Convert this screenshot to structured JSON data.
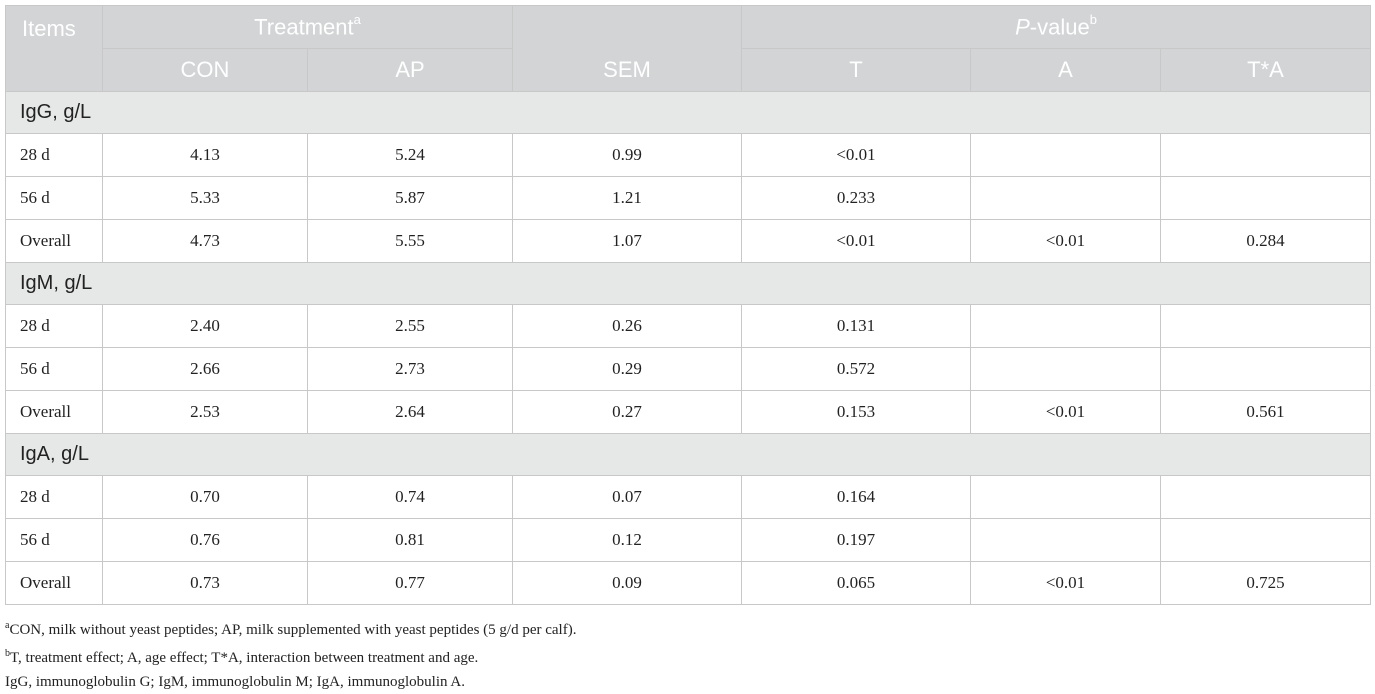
{
  "header": {
    "items": "Items",
    "treatment": "Treatment",
    "treatment_sup": "a",
    "pvalue_italic": "P",
    "pvalue_rest": "-value",
    "pvalue_sup": "b",
    "con": "CON",
    "ap": "AP",
    "sem": "SEM",
    "t": "T",
    "a": "A",
    "ta": "T*A"
  },
  "groups": [
    {
      "title": "IgG, g/L",
      "rows": [
        {
          "label": "28 d",
          "con": "4.13",
          "ap": "5.24",
          "sem": "0.99",
          "t": "<0.01",
          "a": "",
          "ta": ""
        },
        {
          "label": "56 d",
          "con": "5.33",
          "ap": "5.87",
          "sem": "1.21",
          "t": "0.233",
          "a": "",
          "ta": ""
        },
        {
          "label": "Overall",
          "con": "4.73",
          "ap": "5.55",
          "sem": "1.07",
          "t": "<0.01",
          "a": "<0.01",
          "ta": "0.284"
        }
      ]
    },
    {
      "title": "IgM, g/L",
      "rows": [
        {
          "label": "28 d",
          "con": "2.40",
          "ap": "2.55",
          "sem": "0.26",
          "t": "0.131",
          "a": "",
          "ta": ""
        },
        {
          "label": "56 d",
          "con": "2.66",
          "ap": "2.73",
          "sem": "0.29",
          "t": "0.572",
          "a": "",
          "ta": ""
        },
        {
          "label": "Overall",
          "con": "2.53",
          "ap": "2.64",
          "sem": "0.27",
          "t": "0.153",
          "a": "<0.01",
          "ta": "0.561"
        }
      ]
    },
    {
      "title": "IgA, g/L",
      "rows": [
        {
          "label": "28 d",
          "con": "0.70",
          "ap": "0.74",
          "sem": "0.07",
          "t": "0.164",
          "a": "",
          "ta": ""
        },
        {
          "label": "56 d",
          "con": "0.76",
          "ap": "0.81",
          "sem": "0.12",
          "t": "0.197",
          "a": "",
          "ta": ""
        },
        {
          "label": "Overall",
          "con": "0.73",
          "ap": "0.77",
          "sem": "0.09",
          "t": "0.065",
          "a": "<0.01",
          "ta": "0.725"
        }
      ]
    }
  ],
  "footnotes": {
    "a_sup": "a",
    "a_text": "CON, milk without yeast peptides; AP, milk supplemented with yeast peptides (5 g/d per calf).",
    "b_sup": "b",
    "b_text": "T, treatment effect; A, age effect; T*A, interaction between treatment and age.",
    "c_text": "IgG, immunoglobulin G; IgM, immunoglobulin M; IgA, immunoglobulin A."
  }
}
